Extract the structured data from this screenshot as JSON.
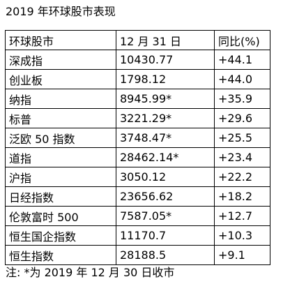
{
  "title": "2019 年环球股市表现",
  "table": {
    "headers": [
      "环球股市",
      "12 月 31 日",
      "同比(%)"
    ],
    "rows": [
      [
        "深成指",
        "10430.77",
        "+44.1"
      ],
      [
        "创业板",
        "1798.12",
        "+44.0"
      ],
      [
        "纳指",
        "8945.99*",
        "+35.9"
      ],
      [
        "标普",
        "3221.29*",
        "+29.6"
      ],
      [
        "泛欧 50 指数",
        "3748.47*",
        "+25.5"
      ],
      [
        "道指",
        "28462.14*",
        "+23.4"
      ],
      [
        "沪指",
        "3050.12",
        "+22.2"
      ],
      [
        "日经指数",
        "23656.62",
        "+18.2"
      ],
      [
        "伦敦富时 500",
        "7587.05*",
        "+12.7"
      ],
      [
        "恒生国企指数",
        "11170.7",
        "+10.3"
      ],
      [
        "恒生指数",
        "28188.5",
        "+9.1"
      ]
    ]
  },
  "note": "注: *为 2019 年 12 月 30 日收市"
}
